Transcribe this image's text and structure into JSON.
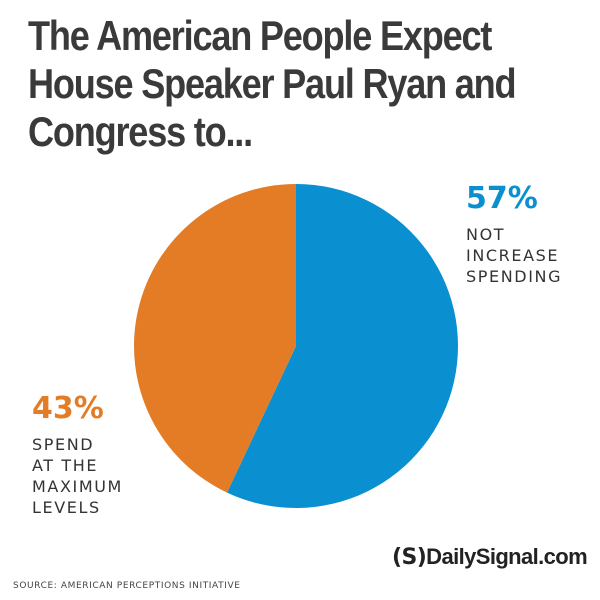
{
  "title_lines": [
    "The American People Expect",
    "House Speaker Paul Ryan and",
    "Congress to..."
  ],
  "chart_data": {
    "type": "pie",
    "slices": [
      {
        "value": 57,
        "label": "57%",
        "text_lines": [
          "NOT",
          "INCREASE",
          "SPENDING"
        ],
        "color": "#0a8fd0"
      },
      {
        "value": 43,
        "label": "43%",
        "text_lines": [
          "SPEND",
          "AT THE",
          "MAXIMUM",
          "LEVELS"
        ],
        "color": "#e47c26"
      }
    ],
    "start": "12 o'clock",
    "direction": "clockwise"
  },
  "logo": {
    "mark": "(S)",
    "text": "DailySignal.com"
  },
  "source": "SOURCE: AMERICAN PERCEPTIONS INITIATIVE"
}
